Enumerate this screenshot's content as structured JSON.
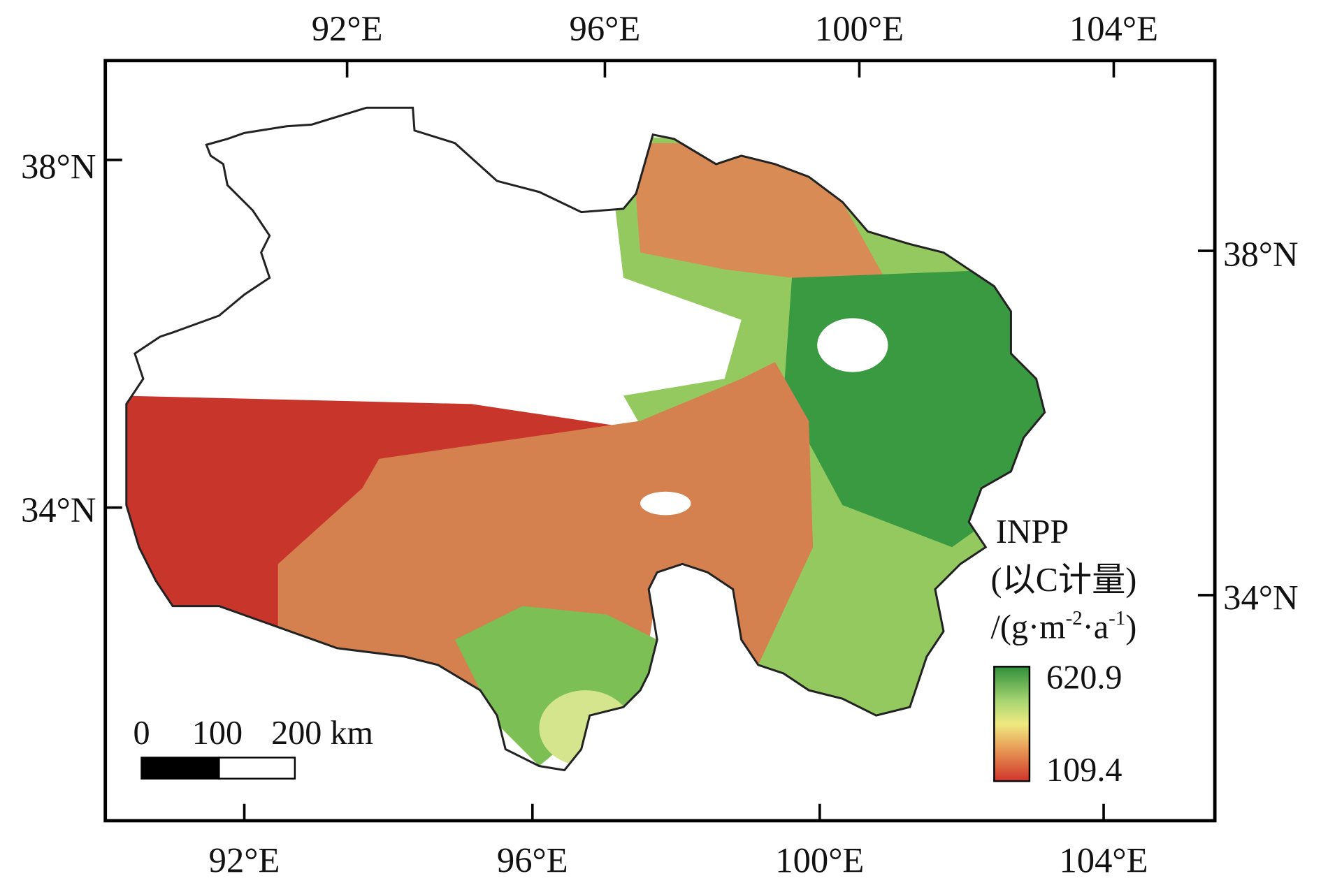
{
  "map": {
    "top_axis_labels": [
      "92°E",
      "96°E",
      "100°E",
      "104°E"
    ],
    "bottom_axis_labels": [
      "92°E",
      "96°E",
      "100°E",
      "104°E"
    ],
    "left_axis_labels": [
      "38°N",
      "34°N"
    ],
    "right_axis_labels": [
      "38°N",
      "34°N"
    ],
    "legend": {
      "title": "INPP",
      "unit_line1": "(以C计量)",
      "unit_line2": [
        "/(g·m",
        "-2",
        "·a",
        "-1",
        ")"
      ],
      "max": 620.9,
      "min": 109.4
    },
    "scale_bar": {
      "labels": [
        "0",
        "100",
        "200 km"
      ]
    }
  }
}
